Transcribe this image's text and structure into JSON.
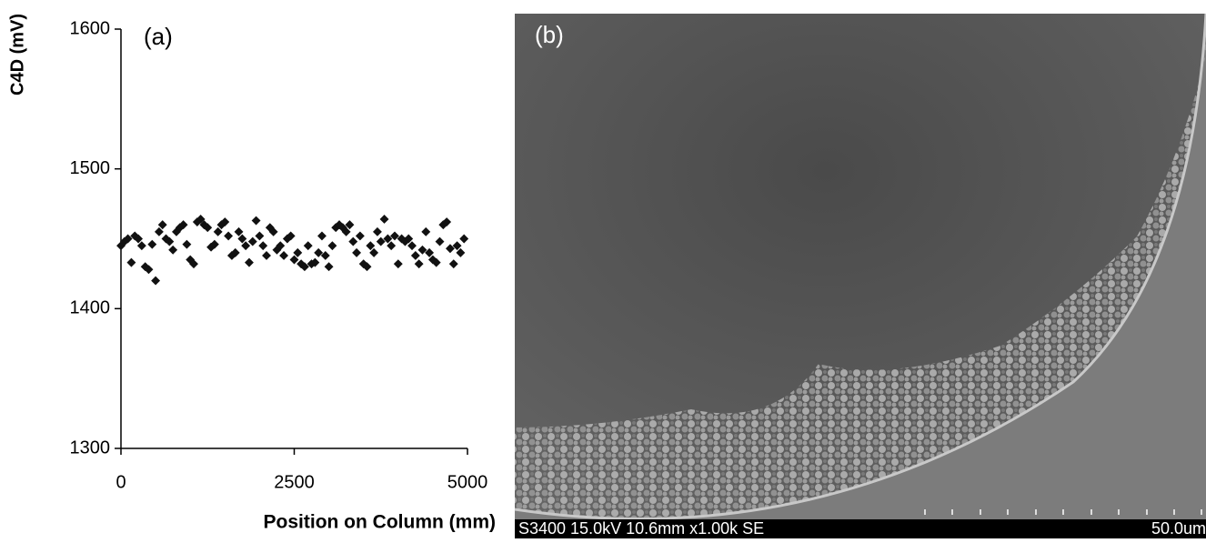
{
  "chart_data": {
    "type": "scatter",
    "panel_label": "(a)",
    "y_label": "C4D (mV)",
    "x_label": "Position on Column (mm)",
    "color": "#111111",
    "x": [
      0,
      50,
      100,
      150,
      200,
      250,
      300,
      350,
      400,
      450,
      500,
      550,
      600,
      650,
      700,
      750,
      800,
      850,
      900,
      950,
      1000,
      1050,
      1100,
      1150,
      1200,
      1250,
      1300,
      1350,
      1400,
      1450,
      1500,
      1550,
      1600,
      1650,
      1700,
      1750,
      1800,
      1850,
      1900,
      1950,
      2000,
      2050,
      2100,
      2150,
      2200,
      2250,
      2300,
      2350,
      2400,
      2450,
      2500,
      2550,
      2600,
      2650,
      2700,
      2750,
      2800,
      2850,
      2900,
      2950,
      3000,
      3050,
      3100,
      3150,
      3200,
      3250,
      3300,
      3350,
      3400,
      3450,
      3500,
      3550,
      3600,
      3650,
      3700,
      3750,
      3800,
      3850,
      3900,
      3950,
      4000,
      4050,
      4100,
      4150,
      4200,
      4250,
      4300,
      4350,
      4400,
      4450,
      4500,
      4550,
      4600,
      4650,
      4700,
      4750,
      4800,
      4850,
      4900,
      4950
    ],
    "values": [
      1445,
      1448,
      1450,
      1433,
      1452,
      1450,
      1445,
      1430,
      1428,
      1446,
      1420,
      1455,
      1460,
      1450,
      1448,
      1442,
      1455,
      1458,
      1460,
      1446,
      1435,
      1432,
      1462,
      1464,
      1460,
      1458,
      1444,
      1446,
      1455,
      1460,
      1462,
      1452,
      1438,
      1440,
      1455,
      1450,
      1445,
      1433,
      1448,
      1463,
      1452,
      1445,
      1438,
      1458,
      1455,
      1442,
      1445,
      1438,
      1450,
      1452,
      1435,
      1440,
      1432,
      1430,
      1445,
      1432,
      1433,
      1440,
      1452,
      1438,
      1430,
      1445,
      1458,
      1460,
      1458,
      1455,
      1460,
      1448,
      1440,
      1452,
      1432,
      1430,
      1445,
      1440,
      1455,
      1448,
      1464,
      1450,
      1445,
      1452,
      1432,
      1450,
      1448,
      1450,
      1445,
      1438,
      1432,
      1442,
      1455,
      1440,
      1435,
      1433,
      1448,
      1460,
      1462,
      1443,
      1432,
      1445,
      1440,
      1450
    ],
    "xlim": [
      0,
      5000
    ],
    "xticks": [
      0,
      2500,
      5000
    ],
    "ylim": [
      1300,
      1600
    ],
    "yticks": [
      1300,
      1400,
      1500,
      1600
    ]
  },
  "image_panel": {
    "label": "(b)",
    "caption": "S3400 15.0kV 10.6mm x1.00k SE",
    "scale_label": "50.0um"
  }
}
